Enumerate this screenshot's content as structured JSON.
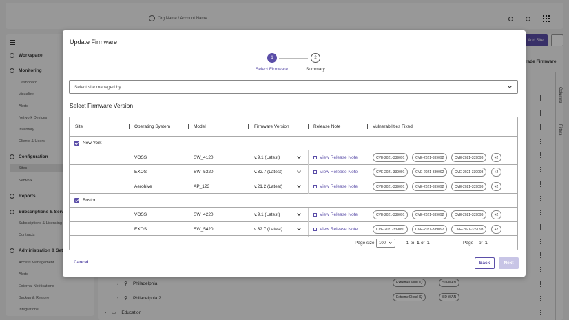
{
  "header": {
    "org_account": "Org Name / Account Name"
  },
  "sidebar": {
    "workspace": "Workspace",
    "monitoring": "Monitoring",
    "monitoring_items": [
      "Dashboard",
      "Visualize",
      "Alerts",
      "Network Devices",
      "Inventory",
      "Clients & Users"
    ],
    "configuration": "Configuration",
    "configuration_items": [
      "Sites",
      "Network"
    ],
    "reports": "Reports",
    "subscriptions": "Subscriptions & Servi",
    "subscriptions_items": [
      "Subscriptions & Licensing",
      "Contracts"
    ],
    "administration": "Administration & Setti",
    "administration_items": [
      "Access Management",
      "Alerts",
      "External Notifications",
      "Backup & Restore",
      "Integrations"
    ]
  },
  "background": {
    "add_site": "Add Site",
    "upgrade_firmware": "rade Firmware",
    "columns": "Columns",
    "filters": "Filters",
    "rows": [
      {
        "name": "Philadelphia",
        "chip1": "ExtremeCloud IQ",
        "chip2": "SD-WAN"
      },
      {
        "name": "Philadelphia 2",
        "chip1": "ExtremeCloud IQ",
        "chip2": "SD-WAN"
      }
    ],
    "education": "Education"
  },
  "modal": {
    "title": "Update Firmware",
    "steps": [
      {
        "num": "1",
        "label": "Select Firmware"
      },
      {
        "num": "2",
        "label": "Summary"
      }
    ],
    "site_select_placeholder": "Select site managed by",
    "section_title": "Select Firmware Version",
    "columns": [
      "Site",
      "Operating System",
      "Model",
      "Firmware Version",
      "Release Note",
      "Vulnerabilities Fixed"
    ],
    "groups": [
      {
        "site": "New York",
        "rows": [
          {
            "os": "VOSS",
            "model": "SW_4120",
            "fw": "v.9.1 (Latest)",
            "note": "View Release Note",
            "cves": [
              "CVE-2021-339091",
              "CVE-2021-339092",
              "CVE-2021-339093"
            ],
            "more": "+2"
          },
          {
            "os": "EXOS",
            "model": "SW_5320",
            "fw": "v.32.7 (Latest)",
            "note": "View Release Note",
            "cves": [
              "CVE-2021-339091",
              "CVE-2021-339092",
              "CVE-2021-339093"
            ],
            "more": "+2"
          },
          {
            "os": "Aerohive",
            "model": "AP_123",
            "fw": "v.21.2 (Latest)",
            "note": "View Release Note",
            "cves": [
              "CVE-2021-339091",
              "CVE-2021-339092",
              "CVE-2021-339093"
            ],
            "more": "+2"
          }
        ]
      },
      {
        "site": "Boston",
        "rows": [
          {
            "os": "VOSS",
            "model": "SW_4220",
            "fw": "v.9.1 (Latest)",
            "note": "View Release Note",
            "cves": [
              "CVE-2021-339091",
              "CVE-2021-339092",
              "CVE-2021-339093"
            ],
            "more": "+2"
          },
          {
            "os": "EXOS",
            "model": "SW_5420",
            "fw": "v.32.7 (Latest)",
            "note": "View Release Note",
            "cves": [
              "CVE-2021-339091",
              "CVE-2021-339092",
              "CVE-2021-339093"
            ],
            "more": "+2"
          }
        ]
      }
    ],
    "pager": {
      "page_size_label": "Page size",
      "page_size": "100",
      "range_from": "1",
      "to": "to",
      "range_to": "1",
      "of": "of",
      "total": "1",
      "page_label": "Page",
      "page_of": "of",
      "page_total": "1"
    },
    "cancel": "Cancel",
    "back": "Back",
    "next": "Next"
  }
}
